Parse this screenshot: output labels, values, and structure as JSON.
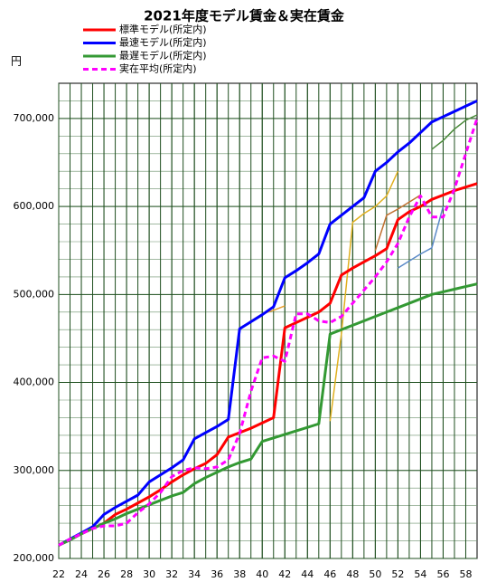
{
  "chart_data": {
    "type": "line",
    "title": "2021年度モデル賃金＆実在賃金",
    "y_unit": "円",
    "x": [
      22,
      23,
      24,
      25,
      26,
      27,
      28,
      29,
      30,
      31,
      32,
      33,
      34,
      35,
      36,
      37,
      38,
      39,
      40,
      41,
      42,
      43,
      44,
      45,
      46,
      47,
      48,
      49,
      50,
      51,
      52,
      53,
      54,
      55,
      56,
      57,
      58,
      59
    ],
    "xlim": [
      22,
      59
    ],
    "xticks": [
      22,
      24,
      26,
      28,
      30,
      32,
      34,
      36,
      38,
      40,
      42,
      44,
      46,
      48,
      50,
      52,
      54,
      56,
      58
    ],
    "ylim": [
      200000,
      740000
    ],
    "yticks": [
      {
        "value": 200000,
        "label": "200,000"
      },
      {
        "value": 300000,
        "label": "300,000"
      },
      {
        "value": 400000,
        "label": "400,000"
      },
      {
        "value": 500000,
        "label": "500,000"
      },
      {
        "value": 600000,
        "label": "600,000"
      },
      {
        "value": 700000,
        "label": "700,000"
      }
    ],
    "grid": true,
    "grid_x_step": 1,
    "grid_y_step": 20000,
    "series": [
      {
        "color": "#e8a030",
        "width": 1.5,
        "values": [
          null,
          null,
          null,
          null,
          null,
          null,
          null,
          null,
          null,
          null,
          null,
          null,
          null,
          null,
          350000,
          357000,
          460000,
          470000,
          478000,
          482000,
          487000,
          null,
          null,
          null,
          null,
          null,
          null,
          null,
          null,
          null,
          null,
          null,
          null,
          null,
          null,
          null,
          null,
          null
        ]
      },
      {
        "color": "#e0b020",
        "width": 1.5,
        "values": [
          null,
          null,
          null,
          null,
          null,
          null,
          null,
          null,
          null,
          null,
          null,
          null,
          null,
          null,
          null,
          null,
          null,
          null,
          null,
          null,
          null,
          null,
          null,
          null,
          356000,
          455000,
          582000,
          592000,
          600000,
          612000,
          640000,
          null,
          null,
          null,
          null,
          null,
          null,
          null
        ]
      },
      {
        "color": "#c07030",
        "width": 1.5,
        "values": [
          null,
          null,
          null,
          null,
          null,
          null,
          null,
          null,
          null,
          null,
          null,
          null,
          null,
          null,
          null,
          null,
          null,
          null,
          null,
          null,
          null,
          null,
          null,
          null,
          null,
          null,
          null,
          null,
          550000,
          590000,
          597000,
          605000,
          613000,
          null,
          null,
          null,
          null,
          null
        ]
      },
      {
        "color": "#5b8ac8",
        "width": 1.5,
        "values": [
          null,
          null,
          null,
          null,
          null,
          null,
          null,
          null,
          null,
          null,
          null,
          null,
          null,
          null,
          null,
          null,
          null,
          null,
          null,
          null,
          null,
          null,
          null,
          null,
          null,
          null,
          null,
          null,
          null,
          null,
          530000,
          538000,
          546000,
          553000,
          600000,
          null,
          null,
          null
        ]
      },
      {
        "color": "#4a8a3a",
        "width": 1.5,
        "values": [
          null,
          null,
          null,
          null,
          null,
          null,
          null,
          null,
          null,
          null,
          null,
          null,
          null,
          null,
          null,
          null,
          null,
          null,
          null,
          null,
          null,
          null,
          null,
          null,
          null,
          null,
          null,
          null,
          null,
          null,
          null,
          null,
          null,
          665000,
          675000,
          688000,
          698000,
          704000
        ]
      },
      {
        "name": "標準モデル(所定内)",
        "color": "#ff0000",
        "width": 3,
        "values": [
          215000,
          222000,
          228000,
          234000,
          240000,
          250000,
          256000,
          263000,
          270000,
          278000,
          287000,
          295000,
          302000,
          308000,
          318000,
          338000,
          343000,
          348000,
          354000,
          360000,
          462000,
          468000,
          474000,
          480000,
          490000,
          522000,
          530000,
          537000,
          544000,
          552000,
          585000,
          594000,
          600000,
          608000,
          613000,
          618000,
          622000,
          626000
        ]
      },
      {
        "name": "最速モデル(所定内)",
        "color": "#0000ff",
        "width": 3,
        "values": [
          215000,
          222000,
          229000,
          236000,
          250000,
          258000,
          265000,
          272000,
          287000,
          295000,
          303000,
          312000,
          336000,
          343000,
          350000,
          358000,
          461000,
          469000,
          477000,
          486000,
          519000,
          527000,
          536000,
          546000,
          580000,
          590000,
          600000,
          610000,
          640000,
          650000,
          662000,
          672000,
          684000,
          696000,
          702000,
          708000,
          714000,
          720000
        ]
      },
      {
        "name": "最遅モデル(所定内)",
        "color": "#339933",
        "width": 3,
        "values": [
          215000,
          221000,
          228000,
          234000,
          240000,
          245000,
          251000,
          256000,
          261000,
          266000,
          271000,
          275000,
          285000,
          292000,
          298000,
          304000,
          309000,
          313000,
          333000,
          337000,
          341000,
          345000,
          349000,
          353000,
          455000,
          460000,
          465000,
          470000,
          475000,
          480000,
          485000,
          490000,
          495000,
          500000,
          503000,
          506000,
          509000,
          512000
        ]
      },
      {
        "name": "実在平均(所定内)",
        "color": "#ff00ff",
        "width": 3,
        "dash": true,
        "values": [
          215000,
          222000,
          228000,
          234000,
          237000,
          237000,
          240000,
          252000,
          262000,
          275000,
          293000,
          300000,
          303000,
          302000,
          304000,
          312000,
          342000,
          390000,
          428000,
          430000,
          424000,
          478000,
          478000,
          470000,
          468000,
          475000,
          490000,
          505000,
          520000,
          537000,
          558000,
          588000,
          612000,
          588000,
          588000,
          620000,
          660000,
          700000
        ]
      }
    ]
  }
}
